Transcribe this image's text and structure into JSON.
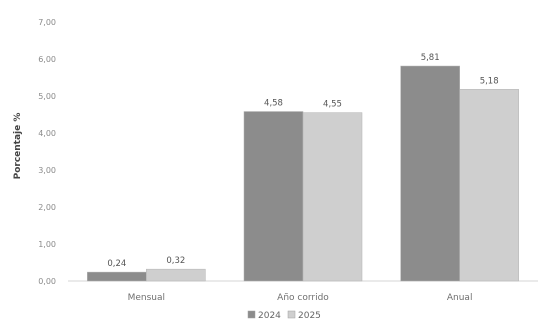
{
  "chart_data": {
    "type": "bar",
    "title": "",
    "xlabel": "",
    "ylabel": "Porcentaje %",
    "categories": [
      "Mensual",
      "Año corrido",
      "Anual"
    ],
    "series": [
      {
        "name": "2024",
        "values": [
          0.24,
          4.58,
          5.81
        ],
        "labels": [
          "0,24",
          "4,58",
          "5,81"
        ],
        "color": "#8c8c8c"
      },
      {
        "name": "2025",
        "values": [
          0.32,
          4.55,
          5.18
        ],
        "labels": [
          "0,32",
          "4,55",
          "5,18"
        ],
        "color": "#cfcfcf"
      }
    ],
    "ylim": [
      0,
      7
    ],
    "yticks": [
      0,
      1,
      2,
      3,
      4,
      5,
      6,
      7
    ],
    "ytick_labels": [
      "0,00",
      "1,00",
      "2,00",
      "3,00",
      "4,00",
      "5,00",
      "6,00",
      "7,00"
    ],
    "grid": false,
    "legend_position": "bottom-center"
  }
}
